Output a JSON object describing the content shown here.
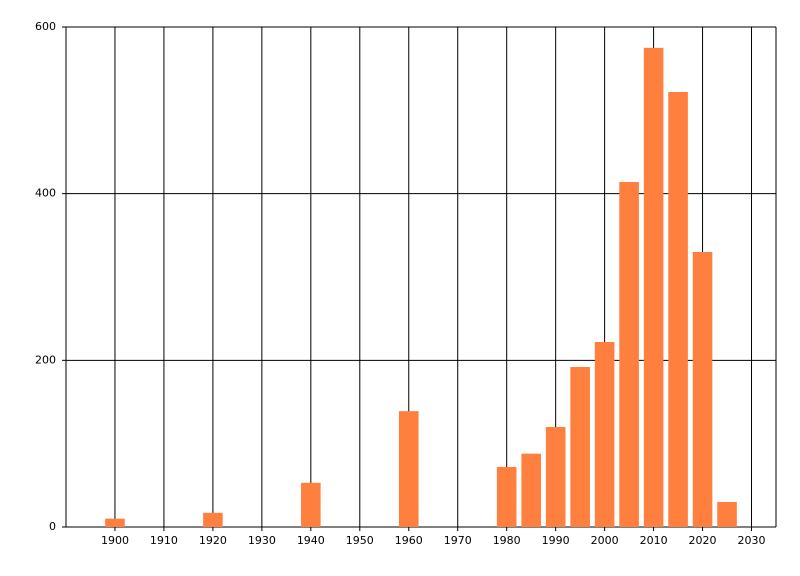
{
  "chart_data": {
    "type": "bar",
    "x": [
      1900,
      1920,
      1940,
      1960,
      1980,
      1985,
      1990,
      1995,
      2000,
      2005,
      2010,
      2015,
      2020,
      2025
    ],
    "values": [
      10,
      17,
      53,
      139,
      72,
      88,
      120,
      192,
      222,
      414,
      575,
      522,
      330,
      30
    ],
    "color": "#ff7f3f",
    "xlim": [
      1890,
      2035
    ],
    "xticks": [
      1900,
      1910,
      1920,
      1930,
      1940,
      1950,
      1960,
      1970,
      1980,
      1990,
      2000,
      2010,
      2020,
      2030
    ],
    "ylim": [
      0,
      600
    ],
    "yticks": [
      0,
      200,
      400,
      600
    ],
    "grid": true
  }
}
